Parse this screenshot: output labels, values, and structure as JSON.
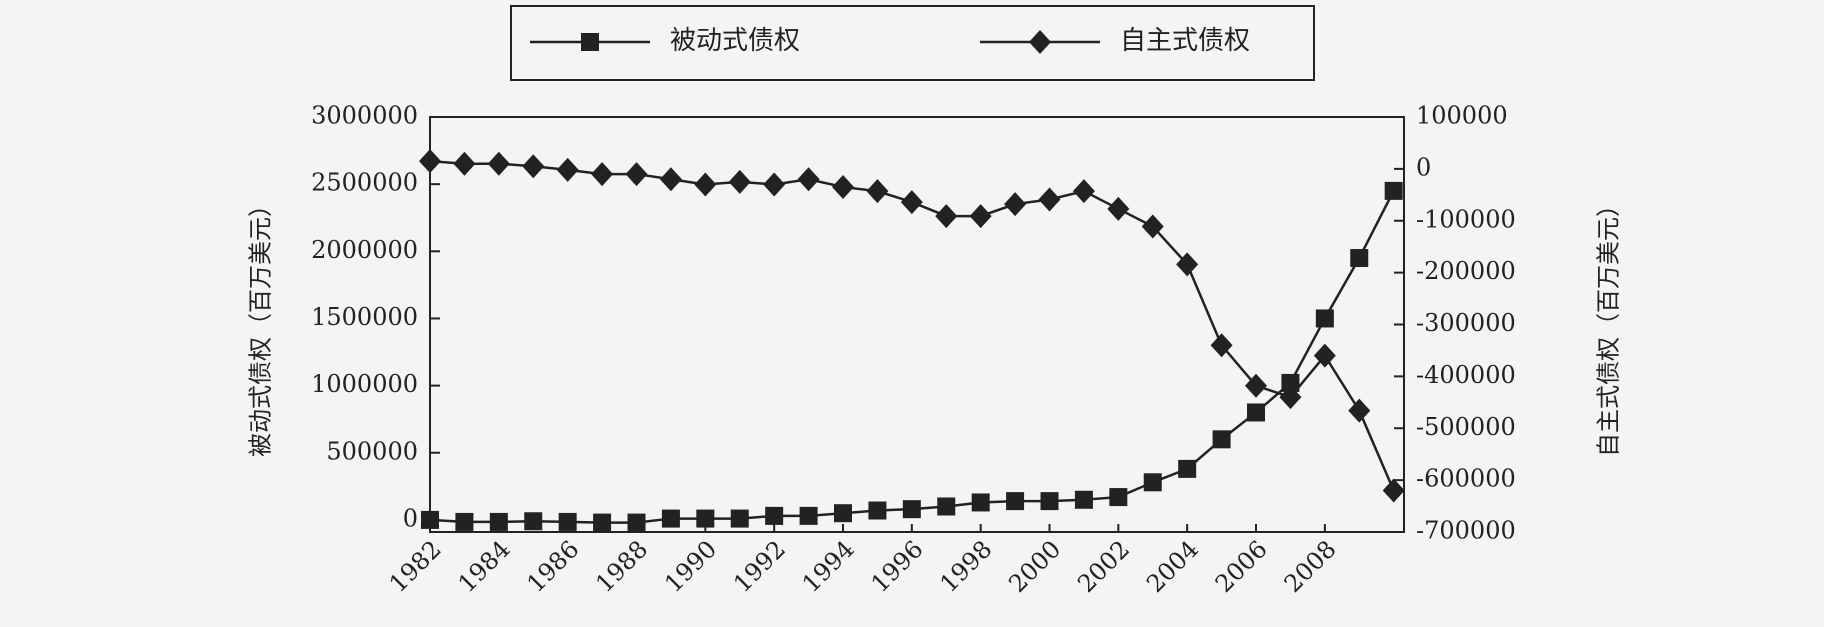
{
  "chart_data": {
    "type": "line",
    "x": [
      1982,
      1983,
      1984,
      1985,
      1986,
      1987,
      1988,
      1989,
      1990,
      1991,
      1992,
      1993,
      1994,
      1995,
      1996,
      1997,
      1998,
      1999,
      2000,
      2001,
      2002,
      2003,
      2004,
      2005,
      2006,
      2007,
      2008,
      2009,
      2010
    ],
    "xlim": [
      1982,
      2010.3
    ],
    "xticks": [
      1982,
      1984,
      1986,
      1988,
      1990,
      1992,
      1994,
      1996,
      1998,
      2000,
      2002,
      2004,
      2006,
      2008
    ],
    "ylabel": "被动式债权（百万美元）",
    "y2label": "自主式债权（百万美元）",
    "ylim": [
      -90000,
      3000000
    ],
    "yticks": [
      0,
      500000,
      1000000,
      1500000,
      2000000,
      2500000,
      3000000
    ],
    "y2lim": [
      -700000,
      100000
    ],
    "y2ticks": [
      -700000,
      -600000,
      -500000,
      -400000,
      -300000,
      -200000,
      -100000,
      0,
      100000
    ],
    "legend": "top",
    "series": [
      {
        "name": "被动式债权",
        "color": "#222222",
        "marker": "square",
        "values": [
          0,
          -15000,
          -15000,
          -10000,
          -15000,
          -20000,
          -20000,
          10000,
          10000,
          10000,
          30000,
          30000,
          50000,
          70000,
          80000,
          100000,
          130000,
          140000,
          140000,
          150000,
          170000,
          280000,
          380000,
          600000,
          800000,
          1020000,
          1500000,
          1950000,
          2450000
        ]
      },
      {
        "name": "自主式债权",
        "color": "#222222",
        "marker": "diamond",
        "axis": "y2",
        "values": [
          15000,
          10000,
          10000,
          5000,
          -2000,
          -10000,
          -10000,
          -20000,
          -30000,
          -25000,
          -30000,
          -20000,
          -35000,
          -43000,
          -64000,
          -91000,
          -91000,
          -68000,
          -59000,
          -43000,
          -77000,
          -111000,
          -184000,
          -340000,
          -418000,
          -440000,
          -360000,
          -466000,
          -620000
        ]
      }
    ]
  }
}
